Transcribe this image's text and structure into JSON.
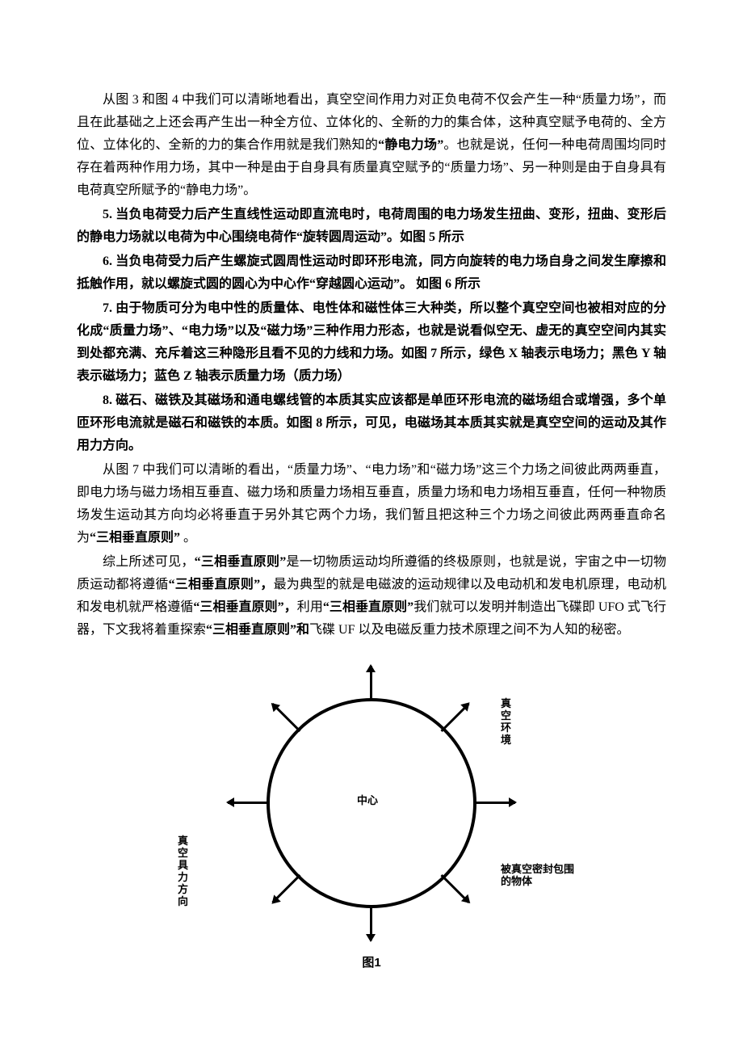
{
  "paragraphs": {
    "p1_a": "从图 3 和图 4 中我们可以清晰地看出，真空空间作用力对正负电荷不仅会产生一种“质量力场”，而且在此基础之上还会再产生出一种全方位、立体化的、全新的力的集合体，这种真空赋予电荷的、全方位、立体化的、全新的力的集合作用就是我们熟知的",
    "p1_b": "“静电力场”",
    "p1_c": "。也就是说，任何一种电荷周围均同时存在着两种作用力场，其中一种是由于自身具有质量真空赋予的“质量力场”、另一种则是由于自身具有电荷真空所赋予的“静电力场”。",
    "p2": "5. 当负电荷受力后产生直线性运动即直流电时，电荷周围的电力场发生扭曲、变形，扭曲、变形后的静电力场就以电荷为中心围绕电荷作“旋转圆周运动”。如图 5 所示",
    "p3": "6. 当负电荷受力后产生螺旋式圆周性运动时即环形电流，同方向旋转的电力场自身之间发生摩擦和抵触作用，就以螺旋式圆的圆心为中心作“穿越圆心运动”。  如图 6 所示",
    "p4": "7. 由于物质可分为电中性的质量体、电性体和磁性体三大种类，所以整个真空空间也被相对应的分化成“质量力场”、“电力场”以及“磁力场”三种作用力形态，也就是说看似空无、虚无的真空空间内其实到处都充满、充斥着这三种隐形且看不见的力线和力场。如图 7 所示，绿色 X 轴表示电场力；黑色 Y 轴表示磁场力；蓝色 Z 轴表示质量力场（质力场）",
    "p5": "8. 磁石、磁铁及其磁场和通电螺线管的本质其实应该都是单匝环形电流的磁场组合或增强，多个单匝环形电流就是磁石和磁铁的本质。如图 8 所示，可见，电磁场其本质其实就是真空空间的运动及其作用力方向。",
    "p6_a": "从图 7 中我们可以清晰的看出，“质量力场”、“电力场”和“磁力场”这三个力场之间彼此两两垂直，即电力场与磁力场相互垂直、磁力场和质量力场相互垂直，质量力场和电力场相互垂直，任何一种物质场发生运动其方向均必将垂直于另外其它两个力场，我们暂且把这种三个力场之间彼此两两垂直命名为",
    "p6_b": "“三相垂直原则”",
    "p6_c": "  。",
    "p7_a": "综上所述可见，",
    "p7_b": "“三相垂直原则”",
    "p7_c": "是一切物质运动均所遵循的终极原则，也就是说，宇宙之中一切物质运动都将遵循",
    "p7_d": "“三相垂直原则”，",
    "p7_e": "最为典型的就是电磁波的运动规律以及电动机和发电机原理，电动机和发电机就严格遵循",
    "p7_f": "“三相垂直原则”，",
    "p7_g": "利用",
    "p7_h": "“三相垂直原则”",
    "p7_i": "我们就可以发明并制造出飞碟即 UFO 式飞行器，下文我将着重探索",
    "p7_j": "“三相垂直原则”和",
    "p7_k": "飞碟 UF 以及电磁反重力技术原理之间不为人知的秘密。"
  },
  "figure1": {
    "center_label": "中心",
    "ne_label": "真空环境",
    "se_label": "被真空密封包围的物体",
    "sw_label": "真空具力方向",
    "caption": "图1",
    "colors": {
      "stroke": "#000000",
      "bg": "#ffffff"
    },
    "circle": {
      "diameter": 260,
      "border_width": 4
    }
  }
}
